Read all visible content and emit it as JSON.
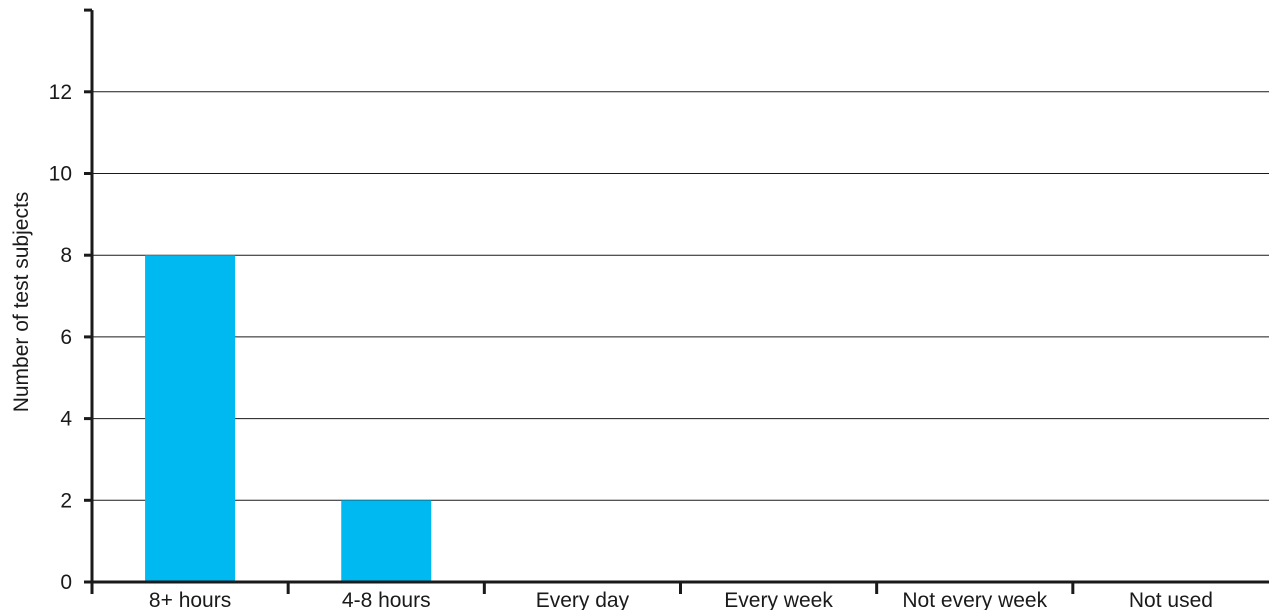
{
  "chart_data": {
    "type": "bar",
    "title": "",
    "xlabel": "",
    "ylabel": "Number of test subjects",
    "categories": [
      "8+ hours",
      "4-8 hours",
      "Every day",
      "Every week",
      "Not every week",
      "Not used"
    ],
    "values": [
      8,
      2,
      0,
      0,
      0,
      0
    ],
    "ylim": [
      0,
      14
    ],
    "yticks": [
      0,
      2,
      4,
      6,
      8,
      10,
      12
    ],
    "grid": true,
    "legend": "none",
    "bar_color": "#00b9f1",
    "axis_color": "#1a1a1a"
  }
}
